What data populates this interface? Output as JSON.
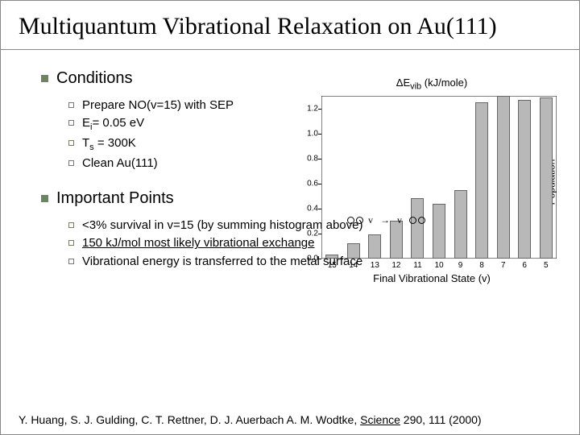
{
  "title": "Multiquantum Vibrational Relaxation on Au(111)",
  "conditions": {
    "heading": "Conditions",
    "items": [
      "Prepare NO(v=15) with SEP",
      "E_i = 0.05 eV",
      "T_s = 300K",
      "Clean Au(111)"
    ]
  },
  "important": {
    "heading": "Important Points",
    "items": [
      "<3% survival in v=15 (by summing histogram above)",
      "150 kJ/mol most likely vibrational exchange",
      "Vibrational energy is transferred to the metal surface"
    ]
  },
  "citation_prefix": "Y. Huang, S. J. Gulding, C. T. Rettner, D. J. Auerbach A. M. Wodtke, ",
  "citation_journal": "Science",
  "citation_suffix": " 290, 111 (2000)",
  "chart": {
    "type": "bar",
    "top_axis_label": "ΔE_vib (kJ/mole)",
    "bottom_axis_label": "Final Vibrational State (v)",
    "right_axis_label": "Population",
    "x_categories": [
      "15",
      "14",
      "13",
      "12",
      "11",
      "10",
      "9",
      "8",
      "7",
      "6",
      "5"
    ],
    "y_ticks": [
      "0.0",
      "0.2",
      "0.4",
      "0.6",
      "0.8",
      "1.0",
      "1.2"
    ],
    "ylim": [
      0,
      1.3
    ],
    "values": [
      0.03,
      0.12,
      0.19,
      0.3,
      0.48,
      0.44,
      0.55,
      1.25,
      1.3,
      1.27,
      1.29
    ],
    "bar_color": "#b8b8b8",
    "bar_border": "#666666",
    "axis_color": "#000000",
    "background": "#ffffff",
    "font_size_ticks": 10,
    "font_size_labels": 13
  }
}
